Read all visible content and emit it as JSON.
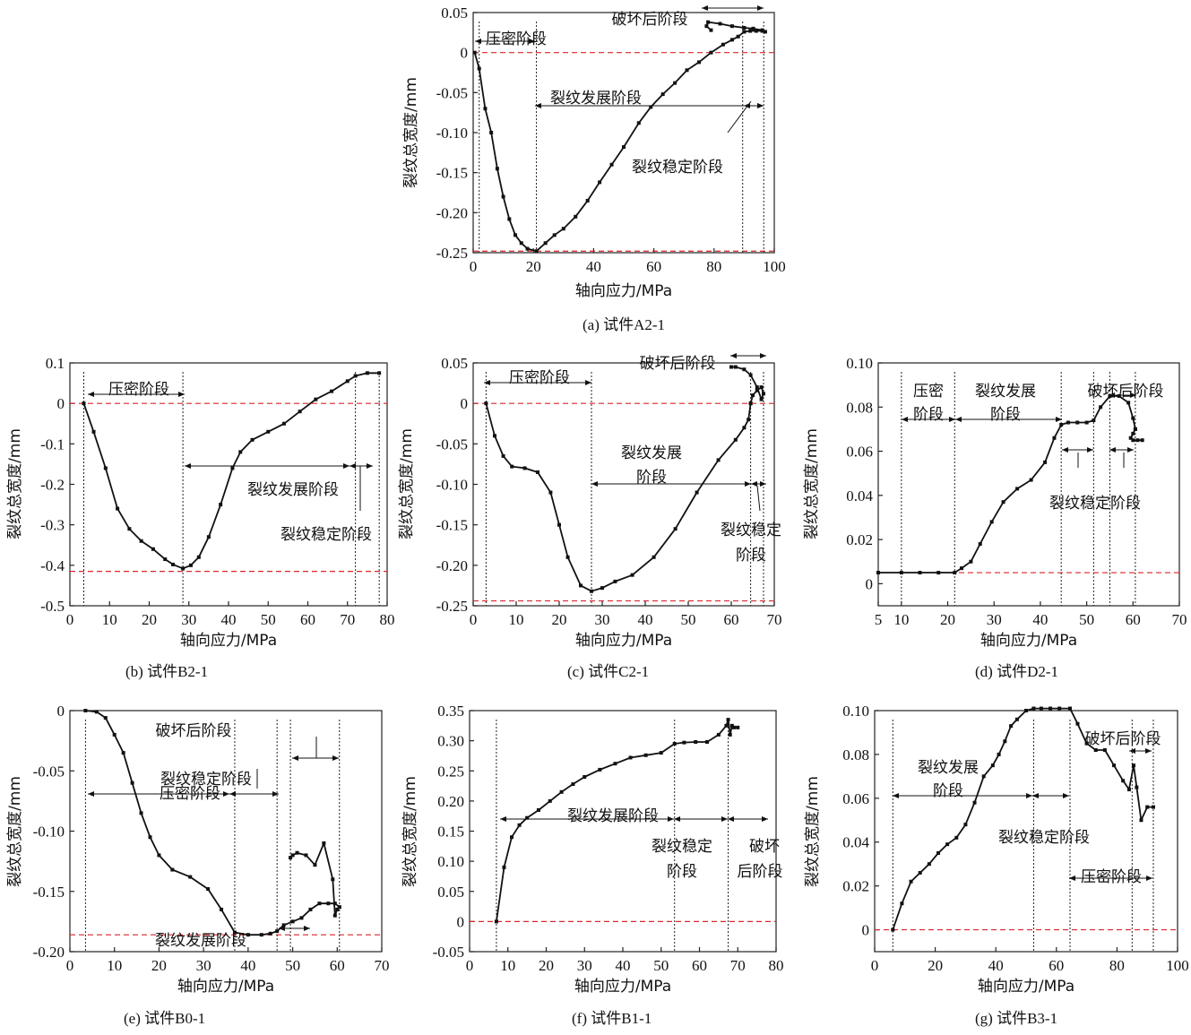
{
  "chart_data": [
    {
      "id": "A2-1",
      "type": "line",
      "caption": "(a)  试件A2-1",
      "xlabel": "轴向应力/MPa",
      "ylabel": "裂纹总宽度/mm",
      "xlim": [
        0,
        100
      ],
      "ylim": [
        -0.25,
        0.05
      ],
      "xticks": [
        0,
        20,
        40,
        60,
        80,
        100
      ],
      "yticks": [
        -0.25,
        -0.2,
        -0.15,
        -0.1,
        -0.05,
        0,
        0.05
      ],
      "ytick_labels": [
        "-0.25",
        "-0.20",
        "-0.15",
        "-0.10",
        "-0.05",
        "0",
        "0.05"
      ],
      "hlines": [
        0,
        -0.248
      ],
      "vlines": [
        2,
        21,
        89.5,
        96.5
      ],
      "series": [
        {
          "x": [
            0.5,
            2,
            4,
            6,
            8,
            10,
            12,
            14,
            16,
            18,
            21,
            24,
            27,
            30,
            34,
            38,
            42,
            46,
            50,
            55,
            59,
            63,
            67,
            71,
            75,
            79,
            83,
            86,
            88,
            90
          ],
          "y": [
            0,
            -0.02,
            -0.07,
            -0.1,
            -0.145,
            -0.18,
            -0.208,
            -0.228,
            -0.238,
            -0.245,
            -0.248,
            -0.238,
            -0.228,
            -0.22,
            -0.205,
            -0.185,
            -0.162,
            -0.14,
            -0.118,
            -0.088,
            -0.068,
            -0.052,
            -0.038,
            -0.022,
            -0.012,
            0,
            0.01,
            0.016,
            0.02,
            0.026
          ]
        },
        {
          "x": [
            90,
            92,
            94,
            96,
            97,
            96,
            93,
            90,
            86,
            82,
            78,
            77.5,
            79
          ],
          "y": [
            0.026,
            0.027,
            0.027,
            0.027,
            0.026,
            0.028,
            0.03,
            0.031,
            0.033,
            0.036,
            0.038,
            0.033,
            0.028
          ]
        }
      ],
      "annotations": [
        {
          "text": "压密阶段",
          "kind": "label"
        },
        {
          "text": "破坏后阶段",
          "kind": "label"
        },
        {
          "text": "裂纹发展阶段",
          "kind": "label"
        },
        {
          "text": "裂纹稳定阶段",
          "kind": "label"
        }
      ]
    },
    {
      "id": "B2-1",
      "type": "line",
      "caption": "(b)  试件B2-1",
      "xlabel": "轴向应力/MPa",
      "ylabel": "裂纹总宽度/mm",
      "xlim": [
        0,
        80
      ],
      "ylim": [
        -0.5,
        0.1
      ],
      "xticks": [
        0,
        10,
        20,
        30,
        40,
        50,
        60,
        70,
        80
      ],
      "yticks": [
        -0.5,
        -0.4,
        -0.3,
        -0.2,
        -0.1,
        0,
        0.1
      ],
      "ytick_labels": [
        "-0.5",
        "-0.4",
        "-0.3",
        "-0.2",
        "-0.1",
        "0",
        "0.1"
      ],
      "hlines": [
        0,
        -0.415
      ],
      "vlines": [
        3.5,
        28.5,
        72,
        78
      ],
      "series": [
        {
          "x": [
            3.5,
            6,
            9,
            12,
            15,
            18,
            21,
            24,
            26,
            28.5,
            30.5,
            32.5,
            35,
            38,
            41,
            43,
            46,
            50,
            54,
            58,
            62,
            66,
            70,
            72,
            75,
            78
          ],
          "y": [
            0,
            -0.07,
            -0.16,
            -0.26,
            -0.31,
            -0.34,
            -0.36,
            -0.385,
            -0.398,
            -0.408,
            -0.4,
            -0.38,
            -0.33,
            -0.25,
            -0.16,
            -0.12,
            -0.09,
            -0.07,
            -0.05,
            -0.02,
            0.01,
            0.03,
            0.055,
            0.068,
            0.075,
            0.075
          ]
        }
      ],
      "annotations": [
        {
          "text": "压密阶段",
          "kind": "label"
        },
        {
          "text": "裂纹发展阶段",
          "kind": "label"
        },
        {
          "text": "裂纹稳定阶段",
          "kind": "label"
        }
      ]
    },
    {
      "id": "C2-1",
      "type": "line",
      "caption": "(c)  试件C2-1",
      "xlabel": "轴向应力/MPa",
      "ylabel": "裂纹总宽度/mm",
      "xlim": [
        0,
        70
      ],
      "ylim": [
        -0.25,
        0.05
      ],
      "xticks": [
        0,
        10,
        20,
        30,
        40,
        50,
        60,
        70
      ],
      "yticks": [
        -0.25,
        -0.2,
        -0.15,
        -0.1,
        -0.05,
        0,
        0.05
      ],
      "ytick_labels": [
        "-0.25",
        "-0.20",
        "-0.15",
        "-0.10",
        "-0.05",
        "0",
        "0.05"
      ],
      "hlines": [
        0,
        -0.244
      ],
      "vlines": [
        3,
        27.5,
        64.5,
        67.5
      ],
      "series": [
        {
          "x": [
            3,
            5,
            7,
            9,
            12,
            15,
            18,
            20,
            22,
            25,
            27.5,
            30,
            33,
            37,
            42,
            47,
            52,
            57,
            61,
            63,
            64,
            64.5
          ],
          "y": [
            0,
            -0.04,
            -0.065,
            -0.078,
            -0.08,
            -0.085,
            -0.11,
            -0.15,
            -0.19,
            -0.225,
            -0.232,
            -0.228,
            -0.22,
            -0.212,
            -0.19,
            -0.155,
            -0.11,
            -0.07,
            -0.045,
            -0.03,
            -0.02,
            0
          ]
        },
        {
          "x": [
            64.5,
            65,
            66,
            67,
            67.5,
            67,
            66,
            64.5,
            63,
            61,
            60
          ],
          "y": [
            0,
            0.01,
            0.016,
            0.02,
            0.012,
            0.005,
            0.02,
            0.035,
            0.042,
            0.045,
            0.045
          ]
        }
      ],
      "annotations": [
        {
          "text": "压密阶段",
          "kind": "label"
        },
        {
          "text": "破坏后阶段",
          "kind": "label"
        },
        {
          "text": "裂纹发展",
          "kind": "label"
        },
        {
          "text": "阶段",
          "kind": "label"
        },
        {
          "text": "裂纹稳定",
          "kind": "label"
        },
        {
          "text": "阶段",
          "kind": "label"
        }
      ]
    },
    {
      "id": "D2-1",
      "type": "line",
      "caption": "(d)  试件D2-1",
      "xlabel": "轴向应力/MPa",
      "ylabel": "裂纹总宽度/mm",
      "xlim": [
        5,
        70
      ],
      "ylim": [
        -0.01,
        0.1
      ],
      "xticks": [
        5,
        10,
        20,
        30,
        40,
        50,
        60,
        70
      ],
      "yticks": [
        0,
        0.02,
        0.04,
        0.06,
        0.08,
        0.1
      ],
      "ytick_labels": [
        "0",
        "0.02",
        "0.04",
        "0.06",
        "0.08",
        "0.10"
      ],
      "hlines": [
        0.005
      ],
      "vlines": [
        10,
        21.5,
        44.5,
        51.5,
        55,
        60.5
      ],
      "series": [
        {
          "x": [
            5,
            10,
            14,
            18,
            21.5,
            23,
            25,
            27,
            29.5,
            32,
            35,
            38,
            41,
            43,
            44.5,
            46,
            48,
            50,
            51.5,
            53,
            55,
            57,
            59,
            60,
            60.5
          ],
          "y": [
            0.005,
            0.005,
            0.005,
            0.005,
            0.005,
            0.007,
            0.01,
            0.018,
            0.028,
            0.037,
            0.043,
            0.047,
            0.055,
            0.066,
            0.072,
            0.073,
            0.073,
            0.073,
            0.074,
            0.08,
            0.085,
            0.085,
            0.082,
            0.075,
            0.07
          ]
        },
        {
          "x": [
            60.5,
            60,
            59.5,
            60,
            61,
            62
          ],
          "y": [
            0.07,
            0.068,
            0.066,
            0.065,
            0.065,
            0.065
          ]
        }
      ],
      "annotations": [
        {
          "text": "压密",
          "kind": "label"
        },
        {
          "text": "阶段",
          "kind": "label"
        },
        {
          "text": "裂纹发展",
          "kind": "label"
        },
        {
          "text": "阶段",
          "kind": "label"
        },
        {
          "text": "破坏后阶段",
          "kind": "label"
        },
        {
          "text": "裂纹稳定阶段",
          "kind": "label"
        }
      ]
    },
    {
      "id": "B0-1",
      "type": "line",
      "caption": "(e)  试件B0-1",
      "xlabel": "轴向应力/MPa",
      "ylabel": "裂纹总宽度/mm",
      "xlim": [
        0,
        70
      ],
      "ylim": [
        -0.2,
        0
      ],
      "xticks": [
        0,
        10,
        20,
        30,
        40,
        50,
        60,
        70
      ],
      "yticks": [
        -0.2,
        -0.15,
        -0.1,
        -0.05,
        0
      ],
      "ytick_labels": [
        "-0.20",
        "-0.15",
        "-0.10",
        "-0.05",
        "0"
      ],
      "hlines": [
        -0.186
      ],
      "vlines": [
        3.5,
        37,
        46.5,
        49.5,
        60.5
      ],
      "series": [
        {
          "x": [
            3.5,
            6,
            8,
            10,
            12,
            14,
            16,
            18,
            20,
            23,
            27,
            31,
            34,
            37,
            40,
            43,
            45,
            46.5,
            48,
            50,
            52,
            54,
            56,
            58,
            59.5,
            60.5
          ],
          "y": [
            0,
            -0.001,
            -0.006,
            -0.02,
            -0.035,
            -0.06,
            -0.085,
            -0.105,
            -0.12,
            -0.132,
            -0.138,
            -0.148,
            -0.165,
            -0.184,
            -0.186,
            -0.186,
            -0.185,
            -0.183,
            -0.178,
            -0.175,
            -0.172,
            -0.165,
            -0.16,
            -0.16,
            -0.16,
            -0.163
          ]
        },
        {
          "x": [
            60.5,
            60,
            59.5,
            59,
            57,
            55,
            53,
            51,
            50,
            49.5
          ],
          "y": [
            -0.163,
            -0.165,
            -0.17,
            -0.14,
            -0.11,
            -0.128,
            -0.12,
            -0.118,
            -0.12,
            -0.122
          ]
        }
      ],
      "annotations": [
        {
          "text": "破坏后阶段",
          "kind": "label"
        },
        {
          "text": "裂纹稳定阶段",
          "kind": "label"
        },
        {
          "text": "压密阶段",
          "kind": "label"
        },
        {
          "text": "裂纹发展阶段",
          "kind": "label"
        }
      ]
    },
    {
      "id": "B1-1",
      "type": "line",
      "caption": "(f)  试件B1-1",
      "xlabel": "轴向应力/MPa",
      "ylabel": "裂纹总宽度/mm",
      "xlim": [
        0,
        80
      ],
      "ylim": [
        -0.05,
        0.35
      ],
      "xticks": [
        0,
        10,
        20,
        30,
        40,
        50,
        60,
        70,
        80
      ],
      "yticks": [
        -0.05,
        0,
        0.05,
        0.1,
        0.15,
        0.2,
        0.25,
        0.3,
        0.35
      ],
      "ytick_labels": [
        "-0.05",
        "0",
        "0.05",
        "0.10",
        "0.15",
        "0.20",
        "0.25",
        "0.30",
        "0.35"
      ],
      "hlines": [
        0
      ],
      "vlines": [
        7,
        53.5,
        67.5
      ],
      "series": [
        {
          "x": [
            7,
            9,
            11,
            13,
            15,
            18,
            21,
            24,
            27,
            30,
            34,
            38,
            42,
            46,
            50,
            53.5,
            56,
            59,
            62,
            65,
            67,
            67.5,
            68,
            68.5,
            69,
            70
          ],
          "y": [
            0,
            0.09,
            0.14,
            0.16,
            0.172,
            0.185,
            0.2,
            0.215,
            0.228,
            0.24,
            0.252,
            0.262,
            0.272,
            0.276,
            0.28,
            0.295,
            0.297,
            0.298,
            0.298,
            0.31,
            0.325,
            0.335,
            0.31,
            0.325,
            0.322,
            0.322
          ]
        }
      ],
      "annotations": [
        {
          "text": "裂纹发展阶段",
          "kind": "label"
        },
        {
          "text": "裂纹稳定",
          "kind": "label"
        },
        {
          "text": "阶段",
          "kind": "label"
        },
        {
          "text": "破坏",
          "kind": "label"
        },
        {
          "text": "后阶段",
          "kind": "label"
        }
      ]
    },
    {
      "id": "B3-1",
      "type": "line",
      "caption": "(g)  试件B3-1",
      "xlabel": "轴向应力/MPa",
      "ylabel": "裂纹总宽度/mm",
      "xlim": [
        0,
        100
      ],
      "ylim": [
        -0.01,
        0.1
      ],
      "xticks": [
        0,
        20,
        40,
        60,
        80,
        100
      ],
      "yticks": [
        0,
        0.02,
        0.04,
        0.06,
        0.08,
        0.1
      ],
      "ytick_labels": [
        "0",
        "0.02",
        "0.04",
        "0.06",
        "0.08",
        "0.10"
      ],
      "hlines": [
        0
      ],
      "vlines": [
        6,
        52.5,
        64.5,
        85,
        92
      ],
      "series": [
        {
          "x": [
            6,
            9,
            12,
            15,
            18,
            21,
            24,
            27,
            30,
            33,
            36,
            39,
            41,
            43,
            45,
            47,
            50,
            52.5,
            55,
            58,
            61,
            64.5,
            67,
            70,
            73,
            76,
            79,
            82,
            84,
            85.5,
            86.5,
            88,
            90,
            92
          ],
          "y": [
            0,
            0.012,
            0.022,
            0.026,
            0.03,
            0.035,
            0.039,
            0.042,
            0.048,
            0.058,
            0.07,
            0.075,
            0.08,
            0.086,
            0.093,
            0.096,
            0.1,
            0.101,
            0.101,
            0.101,
            0.101,
            0.101,
            0.094,
            0.085,
            0.082,
            0.082,
            0.075,
            0.068,
            0.064,
            0.075,
            0.065,
            0.05,
            0.056,
            0.056
          ]
        }
      ],
      "annotations": [
        {
          "text": "破坏后阶段",
          "kind": "label"
        },
        {
          "text": "裂纹发展",
          "kind": "label"
        },
        {
          "text": "阶段",
          "kind": "label"
        },
        {
          "text": "裂纹稳定阶段",
          "kind": "label"
        },
        {
          "text": "压密阶段",
          "kind": "label"
        }
      ]
    }
  ]
}
